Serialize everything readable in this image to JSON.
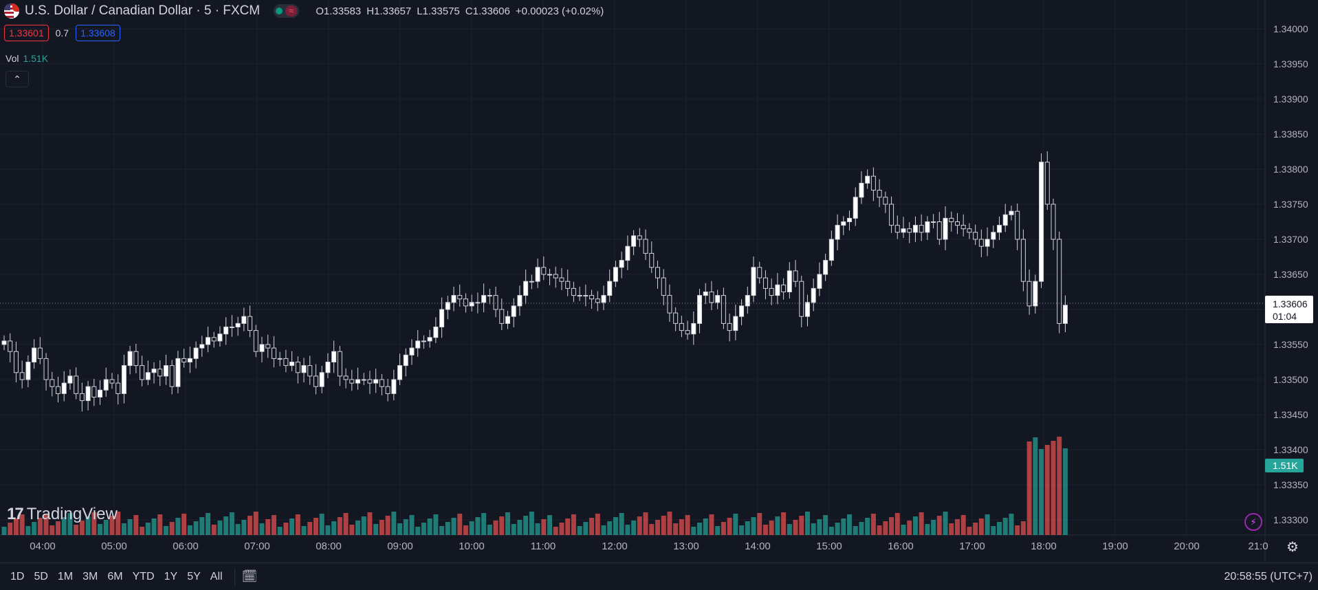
{
  "header": {
    "title": "U.S. Dollar / Canadian Dollar · 5 · FXCM",
    "wave_icon": "≈",
    "ohlc": {
      "open": "O1.33583",
      "high": "H1.33657",
      "low": "L1.33575",
      "close": "C1.33606",
      "change": "+0.00023 (+0.02%)"
    }
  },
  "quote": {
    "sell": "1.33601",
    "spread": "0.7",
    "buy": "1.33608"
  },
  "volume": {
    "label": "Vol",
    "value": "1.51K"
  },
  "logo": {
    "text": "TradingView"
  },
  "price_axis": {
    "labels": [
      "1.34000",
      "1.33950",
      "1.33900",
      "1.33850",
      "1.33800",
      "1.33750",
      "1.33700",
      "1.33650",
      "1.33600",
      "1.33550",
      "1.33500",
      "1.33450",
      "1.33400",
      "1.33350",
      "1.33300"
    ],
    "current_price": "1.33606",
    "countdown": "01:04",
    "volume_badge": "1.51K"
  },
  "time_axis": {
    "labels": [
      "04:00",
      "05:00",
      "06:00",
      "07:00",
      "08:00",
      "09:00",
      "10:00",
      "11:00",
      "12:00",
      "13:00",
      "14:00",
      "15:00",
      "16:00",
      "17:00",
      "18:00",
      "19:00",
      "20:00",
      "21:0"
    ]
  },
  "bottom": {
    "ranges": [
      "1D",
      "5D",
      "1M",
      "3M",
      "6M",
      "YTD",
      "1Y",
      "5Y",
      "All"
    ],
    "clock": "20:58:55 (UTC+7)"
  },
  "colors": {
    "up": "#26a69a",
    "down": "#ef5350",
    "background": "#131722",
    "grid": "#1e222d"
  },
  "chart_data": {
    "type": "candlestick",
    "interval": "5m",
    "ylim": [
      1.333,
      1.34
    ],
    "closes": [
      1.33555,
      1.3354,
      1.3351,
      1.335,
      1.33525,
      1.33545,
      1.3353,
      1.335,
      1.3349,
      1.3348,
      1.33495,
      1.33505,
      1.3348,
      1.3347,
      1.3349,
      1.33475,
      1.33485,
      1.335,
      1.33495,
      1.3348,
      1.3352,
      1.3354,
      1.3352,
      1.335,
      1.3351,
      1.33515,
      1.33505,
      1.3352,
      1.3349,
      1.3353,
      1.33525,
      1.3353,
      1.33545,
      1.3355,
      1.3356,
      1.33555,
      1.33565,
      1.33575,
      1.33575,
      1.3358,
      1.3359,
      1.3357,
      1.3354,
      1.3355,
      1.33545,
      1.3353,
      1.3353,
      1.3352,
      1.33525,
      1.3351,
      1.3352,
      1.33505,
      1.3349,
      1.3351,
      1.33525,
      1.3354,
      1.33505,
      1.335,
      1.33495,
      1.335,
      1.335,
      1.33495,
      1.335,
      1.3349,
      1.3348,
      1.335,
      1.3352,
      1.33535,
      1.33545,
      1.33555,
      1.33555,
      1.3356,
      1.33575,
      1.336,
      1.3361,
      1.3362,
      1.33615,
      1.33605,
      1.3361,
      1.3361,
      1.3362,
      1.3362,
      1.336,
      1.3358,
      1.3359,
      1.33605,
      1.3362,
      1.3364,
      1.3364,
      1.3366,
      1.3365,
      1.3365,
      1.33645,
      1.3364,
      1.3363,
      1.3362,
      1.3362,
      1.3362,
      1.33615,
      1.3361,
      1.3362,
      1.3364,
      1.3366,
      1.3367,
      1.3369,
      1.33705,
      1.337,
      1.3368,
      1.3366,
      1.33645,
      1.3362,
      1.33595,
      1.3358,
      1.3357,
      1.33565,
      1.3358,
      1.3362,
      1.33625,
      1.3361,
      1.3362,
      1.3358,
      1.3357,
      1.3359,
      1.33605,
      1.3362,
      1.3366,
      1.33645,
      1.3363,
      1.3362,
      1.33635,
      1.33625,
      1.33655,
      1.3364,
      1.3359,
      1.3361,
      1.3363,
      1.3365,
      1.3367,
      1.337,
      1.3372,
      1.33725,
      1.3373,
      1.3376,
      1.3378,
      1.3379,
      1.3377,
      1.3376,
      1.3375,
      1.3372,
      1.3371,
      1.33715,
      1.3371,
      1.3372,
      1.3371,
      1.33725,
      1.33725,
      1.337,
      1.3373,
      1.33725,
      1.3372,
      1.33715,
      1.3371,
      1.337,
      1.3369,
      1.337,
      1.3371,
      1.3372,
      1.33735,
      1.3374,
      1.337,
      1.3364,
      1.33605,
      1.3364,
      1.3381,
      1.3375,
      1.337,
      1.3358,
      1.33606
    ]
  }
}
